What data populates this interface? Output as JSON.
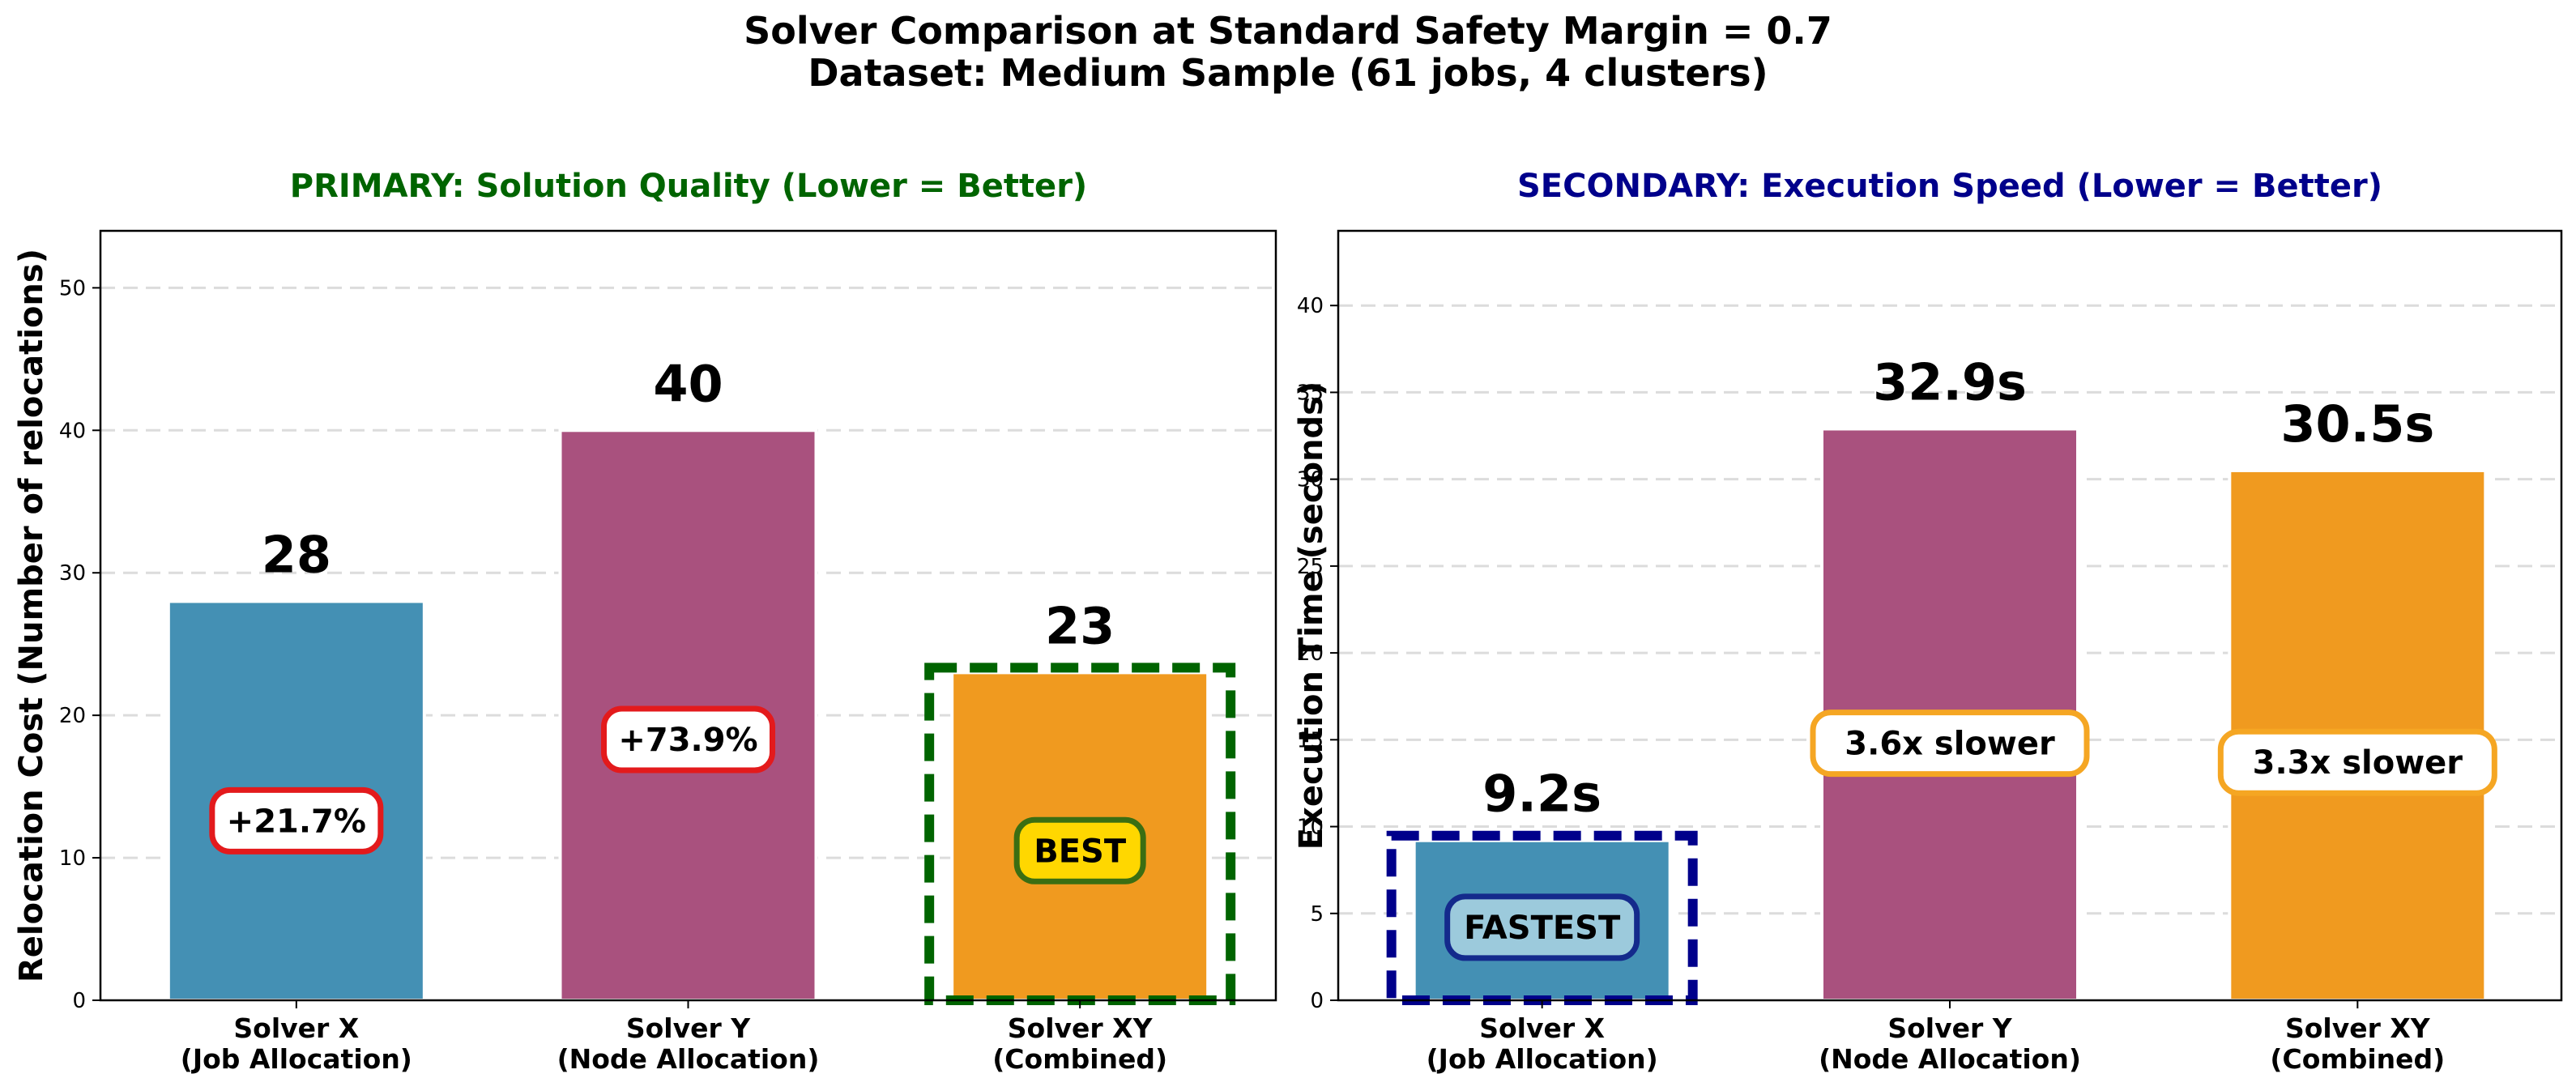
{
  "suptitle": {
    "line1": "Solver Comparison at Standard Safety Margin = 0.7",
    "line2": "Dataset: Medium Sample (61 jobs, 4 clusters)"
  },
  "chart_data": [
    {
      "type": "bar",
      "title": "PRIMARY: Solution Quality (Lower = Better)",
      "title_color": "#006400",
      "ylabel": "Relocation Cost (Number of relocations)",
      "ylim": [
        0,
        54
      ],
      "yticks": [
        0,
        10,
        20,
        30,
        40,
        50
      ],
      "grid": "horizontal dashed",
      "categories": [
        [
          "Solver X",
          "(Job Allocation)"
        ],
        [
          "Solver Y",
          "(Node Allocation)"
        ],
        [
          "Solver XY",
          "(Combined)"
        ]
      ],
      "values": [
        28,
        40,
        23
      ],
      "value_labels": [
        "28",
        "40",
        "23"
      ],
      "colors": [
        "#4490b4",
        "#a9517e",
        "#f09a1f"
      ],
      "annotations": [
        {
          "text": "+21.7%",
          "at": 12.6,
          "face": "#ffffff",
          "edge": "#e31a1c",
          "width": 0
        },
        {
          "text": "+73.9%",
          "at": 18.3,
          "face": "#ffffff",
          "edge": "#e31a1c",
          "width": 0
        },
        {
          "text": "BEST",
          "at": 10.5,
          "face": "#ffd700",
          "edge": "#3b6e12",
          "width": 0
        }
      ],
      "highlight": {
        "index": 2,
        "edge": "#006400"
      }
    },
    {
      "type": "bar",
      "title": "SECONDARY: Execution Speed (Lower = Better)",
      "title_color": "#00008b",
      "ylabel": "Execution Time (seconds)",
      "ylim": [
        0,
        44.3
      ],
      "yticks": [
        0,
        5,
        10,
        15,
        20,
        25,
        30,
        35,
        40
      ],
      "grid": "horizontal dashed",
      "categories": [
        [
          "Solver X",
          "(Job Allocation)"
        ],
        [
          "Solver Y",
          "(Node Allocation)"
        ],
        [
          "Solver XY",
          "(Combined)"
        ]
      ],
      "values": [
        9.2,
        32.9,
        30.5
      ],
      "value_labels": [
        "9.2s",
        "32.9s",
        "30.5s"
      ],
      "colors": [
        "#4490b4",
        "#a9517e",
        "#f09a1f"
      ],
      "annotations": [
        {
          "text": "FASTEST",
          "at": 4.2,
          "face": "#9ccadc",
          "edge": "#142a8c",
          "width": 0
        },
        {
          "text": "3.6x slower",
          "at": 14.8,
          "face": "#ffffff",
          "edge": "#f5a623",
          "width": 0
        },
        {
          "text": "3.3x slower",
          "at": 13.7,
          "face": "#ffffff",
          "edge": "#f5a623",
          "width": 0
        }
      ],
      "highlight": {
        "index": 0,
        "edge": "#00008b"
      }
    }
  ]
}
